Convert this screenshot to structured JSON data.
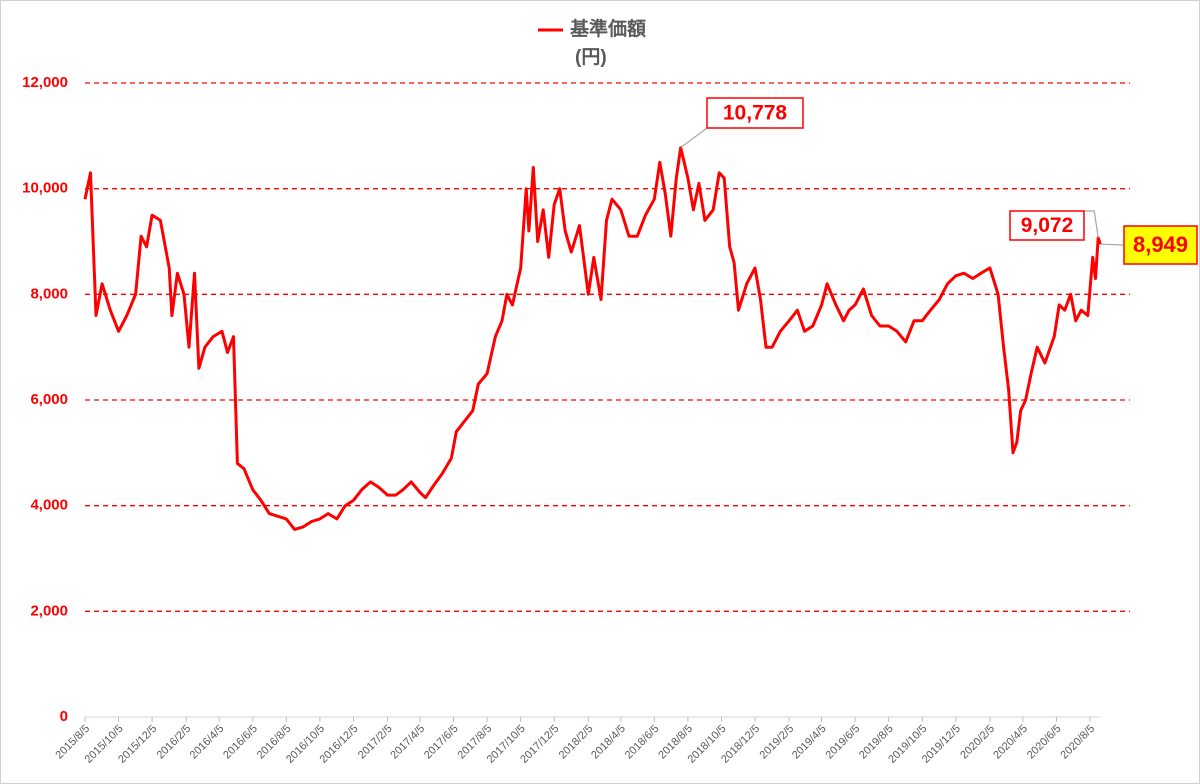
{
  "chart_data": {
    "type": "line",
    "ylabel": "(円)",
    "ylim": [
      0,
      12000
    ],
    "yticks": [
      0,
      {
        "value": 2000,
        "label": "2,000"
      },
      {
        "value": 4000,
        "label": "4,000"
      },
      {
        "value": 6000,
        "label": "6,000"
      },
      {
        "value": 8000,
        "label": "8,000"
      },
      {
        "value": 10000,
        "label": "10,000"
      },
      {
        "value": 12000,
        "label": "12,000"
      }
    ],
    "grid": true,
    "xlim": [
      "2015/8/5",
      "2020/8/25"
    ],
    "xticks": [
      "2015/8/5",
      "2015/10/5",
      "2015/12/5",
      "2016/2/5",
      "2016/4/5",
      "2016/6/5",
      "2016/8/5",
      "2016/10/5",
      "2016/12/5",
      "2017/2/5",
      "2017/4/5",
      "2017/6/5",
      "2017/8/5",
      "2017/10/5",
      "2017/12/5",
      "2018/2/5",
      "2018/4/5",
      "2018/6/5",
      "2018/8/5",
      "2018/10/5",
      "2018/12/5",
      "2019/2/5",
      "2019/4/5",
      "2019/6/5",
      "2019/8/5",
      "2019/10/5",
      "2019/12/5",
      "2020/2/5",
      "2020/4/5",
      "2020/6/5",
      "2020/8/5"
    ],
    "x": [
      "2015/8/5",
      "2015/8/15",
      "2015/8/25",
      "2015/9/5",
      "2015/9/20",
      "2015/10/5",
      "2015/10/20",
      "2015/11/5",
      "2015/11/15",
      "2015/11/25",
      "2015/12/5",
      "2015/12/20",
      "2016/1/5",
      "2016/1/10",
      "2016/1/20",
      "2016/2/1",
      "2016/2/10",
      "2016/2/20",
      "2016/2/28",
      "2016/3/10",
      "2016/3/25",
      "2016/4/10",
      "2016/4/20",
      "2016/5/1",
      "2016/5/8",
      "2016/5/20",
      "2016/6/5",
      "2016/6/20",
      "2016/7/5",
      "2016/7/20",
      "2016/8/5",
      "2016/8/20",
      "2016/9/5",
      "2016/9/20",
      "2016/10/5",
      "2016/10/20",
      "2016/11/5",
      "2016/11/20",
      "2016/12/5",
      "2016/12/20",
      "2017/1/5",
      "2017/1/20",
      "2017/2/5",
      "2017/2/20",
      "2017/3/5",
      "2017/3/20",
      "2017/4/5",
      "2017/4/15",
      "2017/5/1",
      "2017/5/15",
      "2017/6/1",
      "2017/6/10",
      "2017/6/25",
      "2017/7/10",
      "2017/7/20",
      "2017/8/5",
      "2017/8/20",
      "2017/9/1",
      "2017/9/10",
      "2017/9/20",
      "2017/10/5",
      "2017/10/15",
      "2017/10/20",
      "2017/10/28",
      "2017/11/5",
      "2017/11/15",
      "2017/11/25",
      "2017/12/5",
      "2017/12/15",
      "2017/12/25",
      "2018/1/5",
      "2018/1/20",
      "2018/2/5",
      "2018/2/15",
      "2018/2/28",
      "2018/3/10",
      "2018/3/20",
      "2018/4/5",
      "2018/4/20",
      "2018/5/5",
      "2018/5/20",
      "2018/6/5",
      "2018/6/15",
      "2018/6/25",
      "2018/7/5",
      "2018/7/15",
      "2018/7/23",
      "2018/8/5",
      "2018/8/15",
      "2018/8/25",
      "2018/9/5",
      "2018/9/20",
      "2018/10/1",
      "2018/10/10",
      "2018/10/20",
      "2018/10/28",
      "2018/11/5",
      "2018/11/20",
      "2018/12/5",
      "2018/12/15",
      "2018/12/25",
      "2019/1/5",
      "2019/1/20",
      "2019/2/5",
      "2019/2/20",
      "2019/3/5",
      "2019/3/20",
      "2019/4/5",
      "2019/4/15",
      "2019/5/1",
      "2019/5/15",
      "2019/5/25",
      "2019/6/5",
      "2019/6/20",
      "2019/7/5",
      "2019/7/20",
      "2019/8/5",
      "2019/8/20",
      "2019/9/5",
      "2019/9/20",
      "2019/10/5",
      "2019/10/20",
      "2019/11/5",
      "2019/11/20",
      "2019/12/5",
      "2019/12/20",
      "2020/1/5",
      "2020/1/20",
      "2020/2/5",
      "2020/2/20",
      "2020/3/1",
      "2020/3/10",
      "2020/3/18",
      "2020/3/25",
      "2020/4/1",
      "2020/4/10",
      "2020/4/20",
      "2020/5/1",
      "2020/5/15",
      "2020/6/1",
      "2020/6/10",
      "2020/6/20",
      "2020/7/1",
      "2020/7/10",
      "2020/7/20",
      "2020/8/1",
      "2020/8/10",
      "2020/8/15",
      "2020/8/20",
      "2020/8/24"
    ],
    "series": [
      {
        "name": "基準価額",
        "color": "#ff0000",
        "values": [
          9800,
          10300,
          7600,
          8200,
          7700,
          7300,
          7600,
          8000,
          9100,
          8900,
          9500,
          9400,
          8500,
          7600,
          8400,
          8000,
          7000,
          8400,
          6600,
          7000,
          7200,
          7300,
          6900,
          7200,
          4800,
          4700,
          4300,
          4100,
          3850,
          3800,
          3750,
          3550,
          3600,
          3700,
          3750,
          3850,
          3750,
          4000,
          4100,
          4300,
          4450,
          4350,
          4200,
          4200,
          4300,
          4450,
          4250,
          4150,
          4400,
          4600,
          4900,
          5400,
          5600,
          5800,
          6300,
          6500,
          7200,
          7500,
          8000,
          7800,
          8500,
          10000,
          9200,
          10400,
          9000,
          9600,
          8700,
          9700,
          10000,
          9200,
          8800,
          9300,
          8000,
          8700,
          7900,
          9400,
          9800,
          9600,
          9100,
          9100,
          9500,
          9800,
          10500,
          9900,
          9100,
          10200,
          10778,
          10200,
          9600,
          10100,
          9400,
          9600,
          10300,
          10200,
          8900,
          8600,
          7700,
          8200,
          8500,
          7900,
          7000,
          7000,
          7300,
          7500,
          7700,
          7300,
          7400,
          7800,
          8200,
          7800,
          7500,
          7700,
          7800,
          8100,
          7600,
          7400,
          7400,
          7300,
          7100,
          7500,
          7500,
          7700,
          7900,
          8200,
          8350,
          8400,
          8300,
          8400,
          8500,
          8000,
          7000,
          6200,
          5000,
          5200,
          5800,
          6000,
          6500,
          7000,
          6700,
          7200,
          7800,
          7700,
          8000,
          7500,
          7700,
          7600,
          8700,
          8300,
          9072,
          8949
        ]
      }
    ],
    "annotations": [
      {
        "x": "2018/7/23",
        "value": 10778,
        "label": "10,778"
      },
      {
        "x": "2020/8/20",
        "value": 9072,
        "label": "9,072"
      },
      {
        "x": "2020/8/24",
        "value": 8949,
        "label": "8,949",
        "background": "#ffff00"
      }
    ]
  }
}
